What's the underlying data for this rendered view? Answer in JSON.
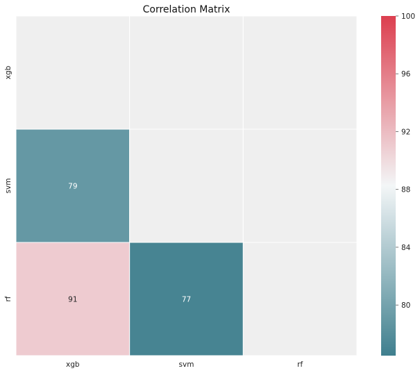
{
  "chart_data": {
    "type": "heatmap",
    "title": "Correlation Matrix",
    "xlabel": "",
    "ylabel": "",
    "x_categories": [
      "xgb",
      "svm",
      "rf"
    ],
    "y_categories": [
      "xgb",
      "svm",
      "rf"
    ],
    "matrix": [
      [
        null,
        null,
        null
      ],
      [
        79,
        null,
        null
      ],
      [
        91,
        77,
        null
      ]
    ],
    "cells": [
      {
        "row": "svm",
        "col": "xgb",
        "value": 79,
        "label": "79"
      },
      {
        "row": "rf",
        "col": "xgb",
        "value": 91,
        "label": "91"
      },
      {
        "row": "rf",
        "col": "svm",
        "value": 77,
        "label": "77"
      }
    ],
    "masked_cell_color": "#efefef",
    "colorbar": {
      "vmin": 76.5,
      "vmax": 100,
      "ticks": [
        80,
        84,
        88,
        92,
        96,
        100
      ],
      "tick_labels": [
        "80",
        "84",
        "88",
        "92",
        "96",
        "100"
      ],
      "colors": {
        "low": "#3f7f8e",
        "mid": "#f3f6f7",
        "mid_value": 88.25,
        "high": "#dc3f4f"
      }
    },
    "grid": false,
    "legend": "colorbar-right"
  }
}
